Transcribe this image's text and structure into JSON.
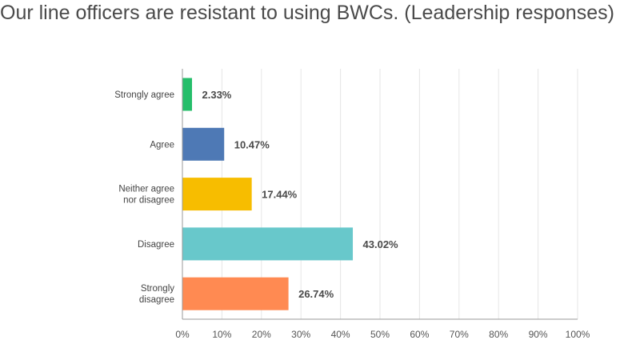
{
  "chart_data": {
    "type": "bar",
    "orientation": "horizontal",
    "title": "Our line officers are resistant to using BWCs. (Leadership responses)",
    "categories": [
      [
        "Strongly agree"
      ],
      [
        "Agree"
      ],
      [
        "Neither agree",
        "nor disagree"
      ],
      [
        "Disagree"
      ],
      [
        "Strongly",
        "disagree"
      ]
    ],
    "values": [
      2.33,
      10.47,
      17.44,
      43.02,
      26.74
    ],
    "value_labels": [
      "2.33%",
      "10.47%",
      "17.44%",
      "43.02%",
      "26.74%"
    ],
    "colors": [
      "#25be6a",
      "#4e79b5",
      "#f7bd00",
      "#68c8cb",
      "#ff8a52"
    ],
    "xlim": [
      0,
      100
    ],
    "xticks": [
      0,
      10,
      20,
      30,
      40,
      50,
      60,
      70,
      80,
      90,
      100
    ],
    "xtick_labels": [
      "0%",
      "10%",
      "20%",
      "30%",
      "40%",
      "50%",
      "60%",
      "70%",
      "80%",
      "90%",
      "100%"
    ],
    "grid": true,
    "xlabel": "",
    "ylabel": ""
  }
}
